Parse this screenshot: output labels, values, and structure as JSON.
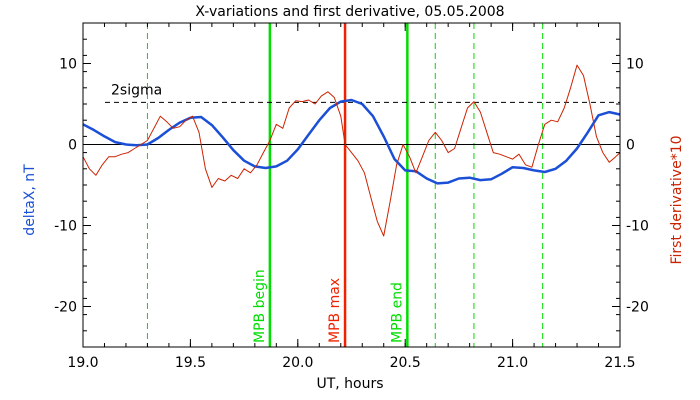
{
  "chart_data": {
    "type": "line",
    "title": "X-variations and first derivative, 05.05.2008",
    "xlabel": "UT, hours",
    "ylabel": "deltaX, nT",
    "y2label": "First derivative*10",
    "xlim": [
      19.0,
      21.5
    ],
    "ylim": [
      -25,
      15
    ],
    "xticks": [
      "19.0",
      "19.5",
      "20.0",
      "20.5",
      "21.0",
      "21.5"
    ],
    "yticks": [
      "10",
      "0",
      "-10",
      "-20"
    ],
    "xtick_values": [
      19.0,
      19.5,
      20.0,
      20.5,
      21.0,
      21.5
    ],
    "ytick_values": [
      10,
      0,
      -10,
      -20
    ],
    "threshold": {
      "label": "2sigma",
      "value": 5.2
    },
    "zero_line": 0,
    "vlines": [
      {
        "x": 19.87,
        "label": "MPB begin",
        "color": "#00dd00",
        "style": "solid"
      },
      {
        "x": 20.22,
        "label": "MPB max",
        "color": "#ee2200",
        "style": "solid"
      },
      {
        "x": 20.51,
        "label": "MPB end",
        "color": "#00dd00",
        "style": "solid"
      },
      {
        "x": 19.3,
        "label": "",
        "color": "#00dd00",
        "style": "dashed"
      },
      {
        "x": 20.64,
        "label": "",
        "color": "#00dd00",
        "style": "dashed"
      },
      {
        "x": 20.82,
        "label": "",
        "color": "#00dd00",
        "style": "dashed"
      },
      {
        "x": 21.14,
        "label": "",
        "color": "#00dd00",
        "style": "dashed"
      }
    ],
    "series": [
      {
        "color": "#1a4fd6",
        "x": [
          19.0,
          19.05,
          19.1,
          19.15,
          19.2,
          19.25,
          19.3,
          19.35,
          19.4,
          19.45,
          19.5,
          19.55,
          19.6,
          19.65,
          19.7,
          19.75,
          19.8,
          19.85,
          19.9,
          19.95,
          20.0,
          20.05,
          20.1,
          20.15,
          20.2,
          20.25,
          20.3,
          20.35,
          20.4,
          20.45,
          20.5,
          20.55,
          20.6,
          20.65,
          20.7,
          20.75,
          20.8,
          20.85,
          20.9,
          20.95,
          21.0,
          21.05,
          21.1,
          21.15,
          21.2,
          21.25,
          21.3,
          21.35,
          21.4,
          21.45,
          21.5
        ],
        "values": [
          2.5,
          1.8,
          1.0,
          0.3,
          0.0,
          -0.1,
          0.0,
          0.8,
          1.8,
          2.7,
          3.3,
          3.4,
          2.4,
          0.9,
          -0.7,
          -2.0,
          -2.7,
          -2.9,
          -2.7,
          -2.0,
          -0.6,
          1.2,
          3.0,
          4.5,
          5.3,
          5.5,
          5.0,
          3.5,
          1.0,
          -1.8,
          -3.2,
          -3.3,
          -4.2,
          -4.8,
          -4.7,
          -4.2,
          -4.1,
          -4.4,
          -4.3,
          -3.6,
          -2.8,
          -2.9,
          -3.2,
          -3.4,
          -3.0,
          -2.0,
          -0.5,
          1.5,
          3.6,
          4.0,
          3.7
        ]
      },
      {
        "color": "#cc2200",
        "x": [
          19.0,
          19.03,
          19.06,
          19.09,
          19.12,
          19.15,
          19.18,
          19.21,
          19.24,
          19.27,
          19.3,
          19.33,
          19.36,
          19.39,
          19.42,
          19.45,
          19.48,
          19.51,
          19.54,
          19.57,
          19.6,
          19.63,
          19.66,
          19.69,
          19.72,
          19.75,
          19.78,
          19.81,
          19.84,
          19.87,
          19.9,
          19.93,
          19.96,
          19.99,
          20.02,
          20.05,
          20.08,
          20.11,
          20.14,
          20.17,
          20.2,
          20.22,
          20.25,
          20.28,
          20.31,
          20.34,
          20.37,
          20.4,
          20.43,
          20.46,
          20.49,
          20.52,
          20.55,
          20.58,
          20.61,
          20.64,
          20.67,
          20.7,
          20.73,
          20.76,
          20.79,
          20.82,
          20.85,
          20.88,
          20.91,
          20.94,
          20.97,
          21.0,
          21.03,
          21.06,
          21.09,
          21.12,
          21.15,
          21.18,
          21.21,
          21.24,
          21.27,
          21.3,
          21.33,
          21.36,
          21.39,
          21.42,
          21.45,
          21.48,
          21.5
        ],
        "values": [
          -1.5,
          -3.0,
          -3.8,
          -2.5,
          -1.5,
          -1.5,
          -1.2,
          -1.0,
          -0.5,
          0.0,
          0.5,
          2.0,
          3.5,
          2.8,
          2.0,
          2.2,
          3.0,
          3.5,
          1.5,
          -3.0,
          -5.3,
          -4.2,
          -4.5,
          -3.8,
          -4.2,
          -3.0,
          -3.5,
          -2.5,
          -1.0,
          0.5,
          2.5,
          2.0,
          4.5,
          5.4,
          5.3,
          5.5,
          5.0,
          6.0,
          6.5,
          5.8,
          3.5,
          0.0,
          -1.0,
          -2.0,
          -3.5,
          -6.5,
          -9.5,
          -11.3,
          -7.0,
          -2.5,
          0.0,
          -1.5,
          -3.5,
          -1.5,
          0.5,
          1.5,
          0.5,
          -1.0,
          -0.5,
          2.0,
          4.5,
          5.3,
          4.0,
          1.5,
          -1.0,
          -1.2,
          -1.5,
          -1.8,
          -1.2,
          -2.5,
          -2.8,
          0.0,
          2.5,
          3.0,
          2.8,
          4.5,
          7.0,
          9.8,
          8.5,
          5.0,
          1.0,
          -1.0,
          -2.2,
          -1.5,
          -1.0
        ]
      }
    ]
  }
}
